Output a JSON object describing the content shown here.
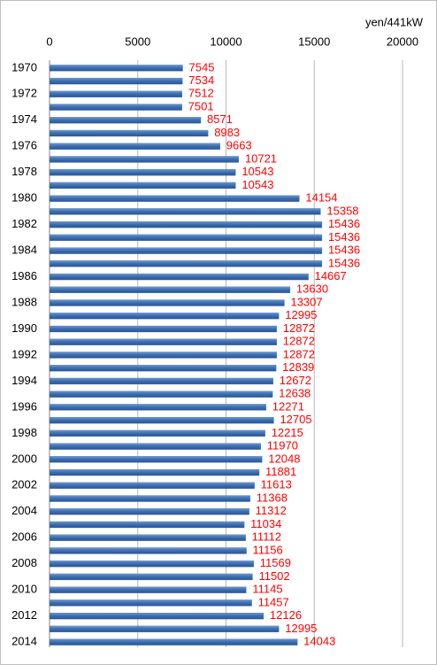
{
  "chart_data": {
    "type": "barh",
    "unit_label": "yen/441kW",
    "categories": [
      "1970",
      null,
      "1972",
      null,
      "1974",
      null,
      "1976",
      null,
      "1978",
      null,
      "1980",
      null,
      "1982",
      null,
      "1984",
      null,
      "1986",
      null,
      "1988",
      null,
      "1990",
      null,
      "1992",
      null,
      "1994",
      null,
      "1996",
      null,
      "1998",
      null,
      "2000",
      null,
      "2002",
      null,
      "2004",
      null,
      "2006",
      null,
      "2008",
      null,
      "2010",
      null,
      "2012",
      null,
      "2014"
    ],
    "values": [
      7545,
      7534,
      7512,
      7501,
      8571,
      8983,
      9663,
      10721,
      10543,
      10543,
      14154,
      15358,
      15436,
      15436,
      15436,
      15436,
      14667,
      13630,
      13307,
      12995,
      12872,
      12872,
      12872,
      12839,
      12672,
      12638,
      12271,
      12705,
      12215,
      11970,
      12048,
      11881,
      11613,
      11368,
      11312,
      11034,
      11112,
      11156,
      11569,
      11502,
      11145,
      11457,
      12126,
      12995,
      14043
    ],
    "color": "#3d6fb3",
    "value_label_color": "#ff0000",
    "xlim": [
      0,
      20000
    ],
    "xticks": [
      0,
      5000,
      10000,
      15000,
      20000
    ],
    "grid": true
  }
}
